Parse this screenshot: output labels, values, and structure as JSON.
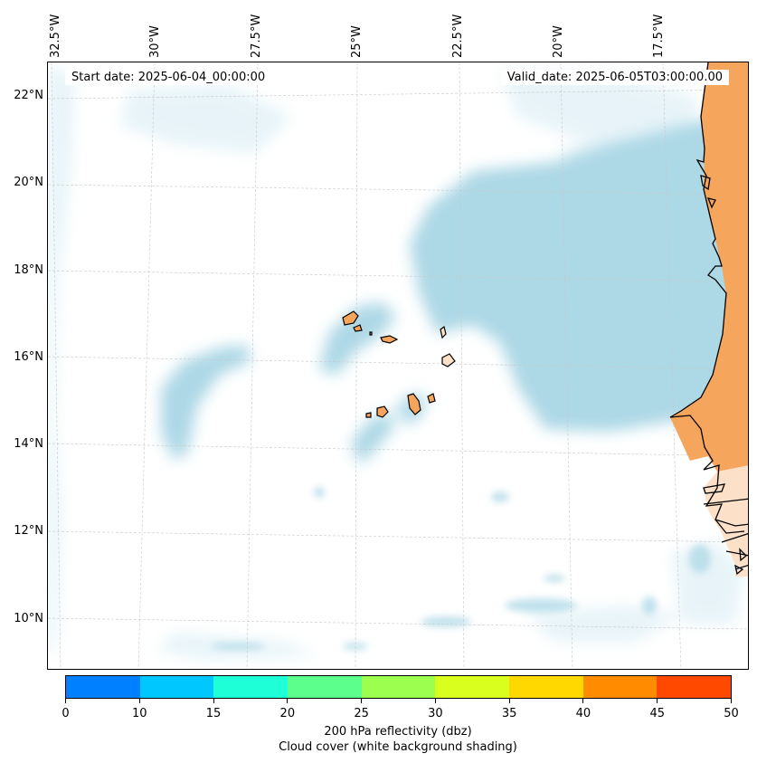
{
  "map": {
    "start_date": "Start date: 2025-06-04_00:00:00",
    "valid_date": "Valid_date: 2025-06-05T03:00:00.00",
    "lon_labels": [
      "32.5°W",
      "30°W",
      "27.5°W",
      "25°W",
      "22.5°W",
      "20°W",
      "17.5°W"
    ],
    "lat_labels": [
      "22°N",
      "20°N",
      "18°N",
      "16°N",
      "14°N",
      "12°N",
      "10°N"
    ],
    "colors": {
      "land": "#f5a55c",
      "land_light": "#fde0c8",
      "cloud": "#add8e6",
      "cloud_light": "#d4ebf3",
      "grid": "#c8c8c8",
      "coast": "#000000"
    }
  },
  "colorbar": {
    "colors": [
      "#0080ff",
      "#00c8ff",
      "#1effd7",
      "#5cff8c",
      "#9cff50",
      "#d8ff1e",
      "#ffd800",
      "#ff8c00",
      "#ff4800"
    ],
    "ticks": [
      "0",
      "10",
      "15",
      "20",
      "25",
      "30",
      "35",
      "40",
      "45",
      "50"
    ],
    "title_line1": "200 hPa reflectivity (dbz)",
    "title_line2": "Cloud cover (white background shading)"
  }
}
